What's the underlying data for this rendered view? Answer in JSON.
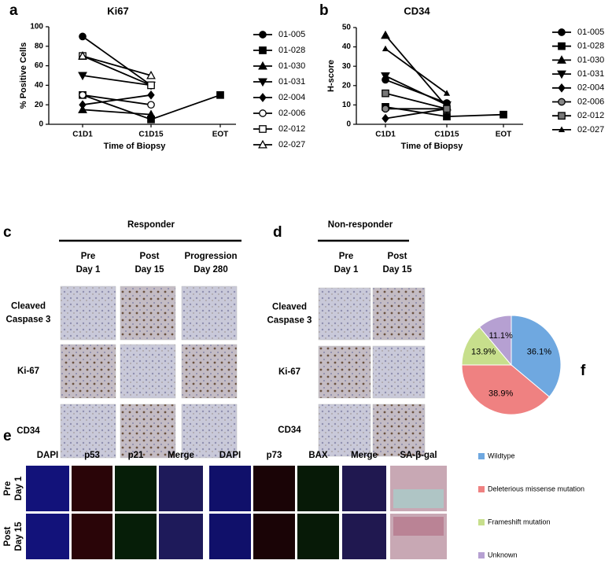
{
  "chart_data": [
    {
      "type": "line",
      "label": "a",
      "title": "Ki67",
      "ylabel": "% Positive Cells",
      "xlabel": "Time of Biopsy",
      "categories": [
        "C1D1",
        "C1D15",
        "EOT"
      ],
      "ylim": [
        0,
        100
      ],
      "yticks": [
        0,
        20,
        40,
        60,
        80,
        100
      ],
      "color": "#000000",
      "series": [
        {
          "name": "01-005",
          "marker": "circle",
          "values": [
            90,
            40,
            null
          ]
        },
        {
          "name": "01-028",
          "marker": "square",
          "values": [
            30,
            5,
            30
          ]
        },
        {
          "name": "01-030",
          "marker": "triangle-up",
          "values": [
            15,
            10,
            null
          ]
        },
        {
          "name": "01-031",
          "marker": "triangle-down",
          "values": [
            50,
            40,
            null
          ]
        },
        {
          "name": "02-004",
          "marker": "diamond",
          "values": [
            20,
            30,
            null
          ]
        },
        {
          "name": "02-006",
          "marker": "circle-open",
          "values": [
            30,
            20,
            null
          ]
        },
        {
          "name": "02-012",
          "marker": "square-open",
          "values": [
            70,
            40,
            null
          ]
        },
        {
          "name": "02-027",
          "marker": "triangle-open",
          "values": [
            70,
            50,
            null
          ]
        }
      ]
    },
    {
      "type": "line",
      "label": "b",
      "title": "CD34",
      "ylabel": "H-score",
      "xlabel": "Time of Biopsy",
      "categories": [
        "C1D1",
        "C1D15",
        "EOT"
      ],
      "ylim": [
        0,
        50
      ],
      "yticks": [
        0,
        10,
        20,
        30,
        40,
        50
      ],
      "color": "#000000",
      "series": [
        {
          "name": "01-005",
          "marker": "circle",
          "values": [
            23,
            11,
            null
          ]
        },
        {
          "name": "01-028",
          "marker": "square",
          "values": [
            9,
            4,
            5
          ]
        },
        {
          "name": "01-030",
          "marker": "triangle-up",
          "values": [
            46,
            9,
            null
          ]
        },
        {
          "name": "01-031",
          "marker": "triangle-down",
          "values": [
            25,
            10,
            null
          ]
        },
        {
          "name": "02-004",
          "marker": "diamond",
          "values": [
            3,
            8,
            null
          ]
        },
        {
          "name": "02-006",
          "marker": "circle-dot",
          "values": [
            8,
            8,
            null
          ]
        },
        {
          "name": "02-012",
          "marker": "square-gray",
          "values": [
            16,
            8,
            null
          ]
        },
        {
          "name": "02-027",
          "marker": "triangle-small",
          "values": [
            39,
            16,
            null
          ]
        }
      ]
    },
    {
      "type": "pie",
      "label": "f",
      "categories": [
        "Wildtype",
        "Deleterious missense mutation",
        "Frameshift mutation",
        "Unknown"
      ],
      "values": [
        36.1,
        38.9,
        13.9,
        11.1
      ],
      "value_labels": [
        "36.1%",
        "38.9%",
        "13.9%",
        "11.1%"
      ],
      "colors": [
        "#6fa8e0",
        "#ef8181",
        "#c7df8c",
        "#b6a0d2"
      ]
    }
  ],
  "panel_c": {
    "label": "c",
    "title": "Responder",
    "columns": [
      [
        "Pre",
        "Day 1"
      ],
      [
        "Post",
        "Day 15"
      ],
      [
        "Progression",
        "Day 280"
      ]
    ],
    "rows": [
      [
        "Cleaved",
        "Caspase 3"
      ],
      [
        "Ki-67"
      ],
      [
        "CD34"
      ]
    ]
  },
  "panel_d": {
    "label": "d",
    "title": "Non-responder",
    "columns": [
      [
        "Pre",
        "Day 1"
      ],
      [
        "Post",
        "Day 15"
      ]
    ],
    "rows": [
      [
        "Cleaved",
        "Caspase 3"
      ],
      [
        "Ki-67"
      ],
      [
        "CD34"
      ]
    ]
  },
  "panel_e": {
    "label": "e",
    "columns": [
      "DAPI",
      "p53",
      "p21",
      "Merge",
      "DAPI",
      "p73",
      "BAX",
      "Merge",
      "SA-β-gal"
    ],
    "rows": [
      [
        "Pre",
        "Day 1"
      ],
      [
        "Post",
        "Day 15"
      ]
    ]
  }
}
